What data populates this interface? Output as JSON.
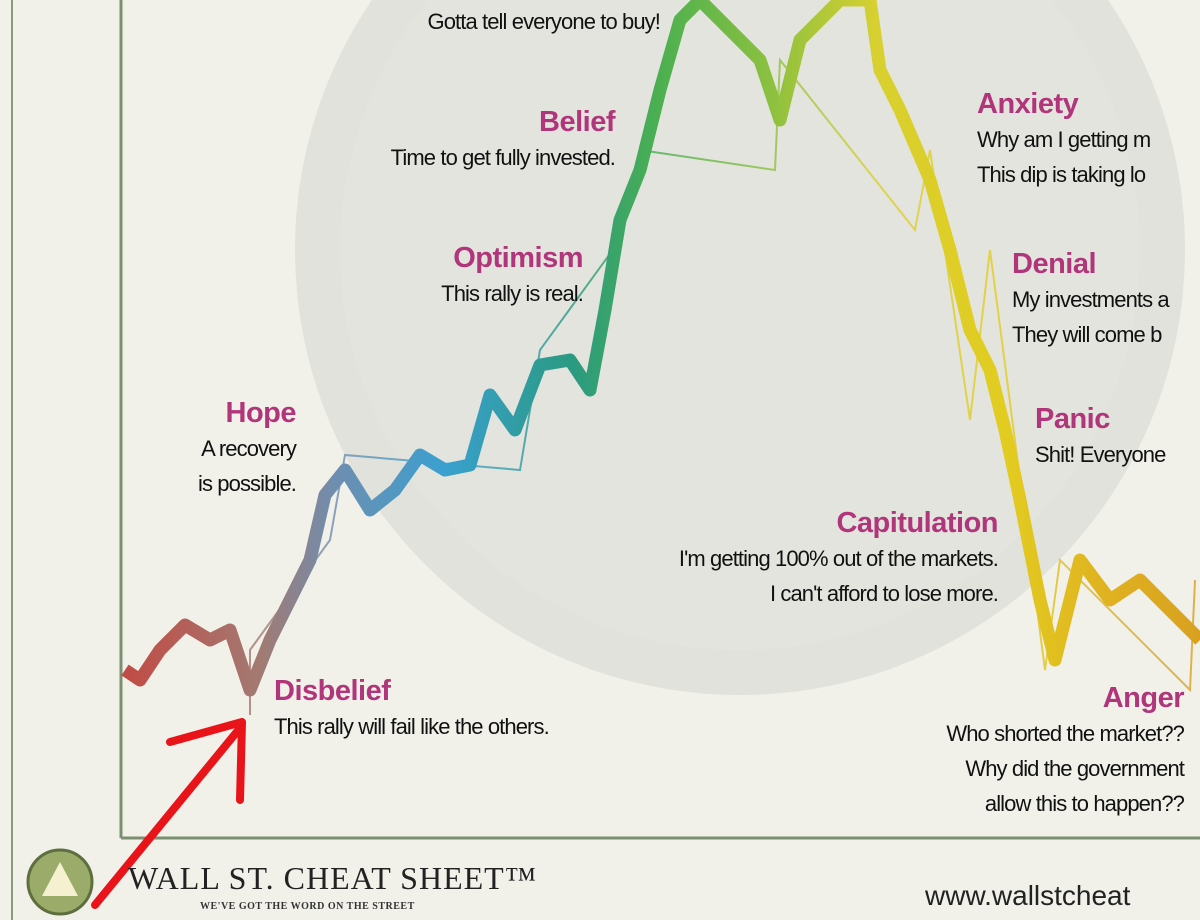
{
  "stages": [
    {
      "lines": [
        "Gotta tell everyone to buy!"
      ]
    },
    {
      "title": "Belief",
      "lines": [
        "Time to get fully invested."
      ]
    },
    {
      "title": "Optimism",
      "lines": [
        "This rally is real."
      ]
    },
    {
      "title": "Hope",
      "lines": [
        "A recovery",
        "is possible."
      ]
    },
    {
      "title": "Disbelief",
      "lines": [
        "This rally will fail like the others."
      ]
    },
    {
      "title": "Anxiety",
      "lines": [
        "Why am I getting m",
        "This dip is taking lo"
      ]
    },
    {
      "title": "Denial",
      "lines": [
        "My investments a",
        "They will come b"
      ]
    },
    {
      "title": "Panic",
      "lines": [
        "Shit! Everyone"
      ]
    },
    {
      "title": "Capitulation",
      "lines": [
        "I'm getting 100% out of the markets.",
        "I can't afford to lose more."
      ]
    },
    {
      "title": "Anger",
      "lines": [
        "Who shorted the market??",
        "Why did the government",
        "allow this to happen??"
      ]
    }
  ],
  "footer": {
    "brand": "WALL ST. CHEAT SHEET™",
    "tagline": "WE'VE GOT THE WORD ON THE STREET",
    "url": "www.wallstcheat"
  }
}
